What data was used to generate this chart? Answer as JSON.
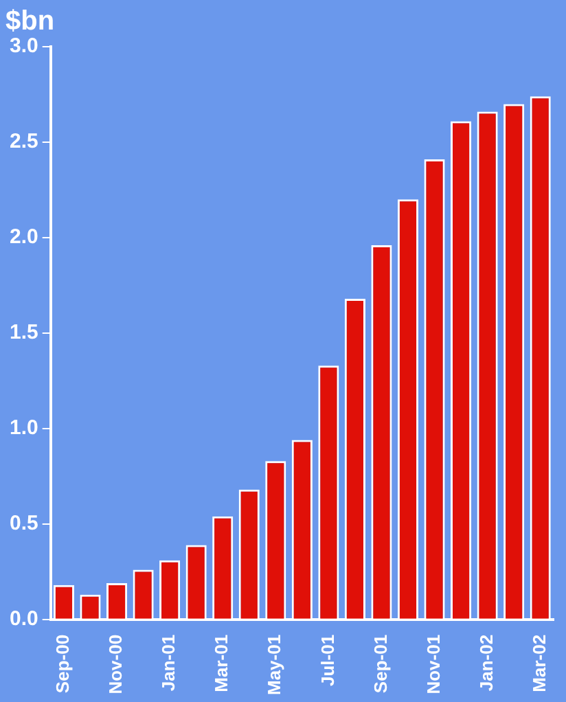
{
  "chart_data": {
    "type": "bar",
    "title": "$bn",
    "categories": [
      "Sep-00",
      null,
      "Nov-00",
      null,
      "Jan-01",
      null,
      "Mar-01",
      null,
      "May-01",
      null,
      "Jul-01",
      null,
      "Sep-01",
      null,
      "Nov-01",
      null,
      "Jan-02",
      null,
      "Mar-02"
    ],
    "values": [
      0.18,
      0.13,
      0.19,
      0.26,
      0.31,
      0.39,
      0.54,
      0.68,
      0.83,
      0.94,
      1.33,
      1.68,
      1.96,
      2.2,
      2.41,
      2.61,
      2.66,
      2.7,
      2.74
    ],
    "color": "#e01008",
    "ylim": [
      0,
      3
    ],
    "yticks": [
      {
        "value": 0,
        "label": "0.0"
      },
      0.5,
      {
        "value": 1,
        "label": "1.0"
      },
      1.5,
      {
        "value": 2,
        "label": "2.0"
      },
      2.5,
      {
        "value": 3,
        "label": "3.0"
      }
    ],
    "grid": false
  }
}
